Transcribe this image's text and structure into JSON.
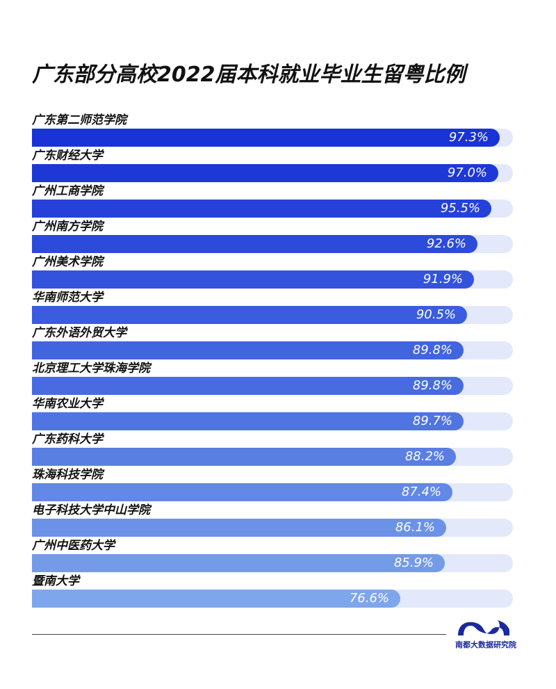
{
  "title": "广东部分高校2022届本科就业毕业生留粤比例",
  "chart_data": {
    "type": "bar",
    "orientation": "horizontal",
    "title": "广东部分高校2022届本科就业毕业生留粤比例",
    "xlim": [
      0,
      100
    ],
    "categories": [
      "广东第二师范学院",
      "广东财经大学",
      "广州工商学院",
      "广州南方学院",
      "广州美术学院",
      "华南师范大学",
      "广东外语外贸大学",
      "北京理工大学珠海学院",
      "华南农业大学",
      "广东药科大学",
      "珠海科技学院",
      "电子科技大学中山学院",
      "广州中医药大学",
      "暨南大学"
    ],
    "values": [
      97.3,
      97.0,
      95.5,
      92.6,
      91.9,
      90.5,
      89.8,
      89.8,
      89.7,
      88.2,
      87.4,
      86.1,
      85.9,
      76.6
    ],
    "value_labels": [
      "97.3%",
      "97.0%",
      "95.5%",
      "92.6%",
      "91.9%",
      "90.5%",
      "89.8%",
      "89.8%",
      "89.7%",
      "88.2%",
      "87.4%",
      "86.1%",
      "85.9%",
      "76.6%"
    ],
    "colors": [
      "#1a33d6",
      "#1e38d8",
      "#2541da",
      "#2c4bdb",
      "#3353dc",
      "#3a5cde",
      "#4164df",
      "#486ce0",
      "#5074e2",
      "#5a7fe3",
      "#6388e5",
      "#6c92e7",
      "#749be8",
      "#7ea6ea"
    ],
    "track_color": "#e3e8fb",
    "grid": false,
    "legend": "none"
  },
  "footer": {
    "logo_text": "南都大数据研究院",
    "logo_color": "#1a2a9e"
  }
}
